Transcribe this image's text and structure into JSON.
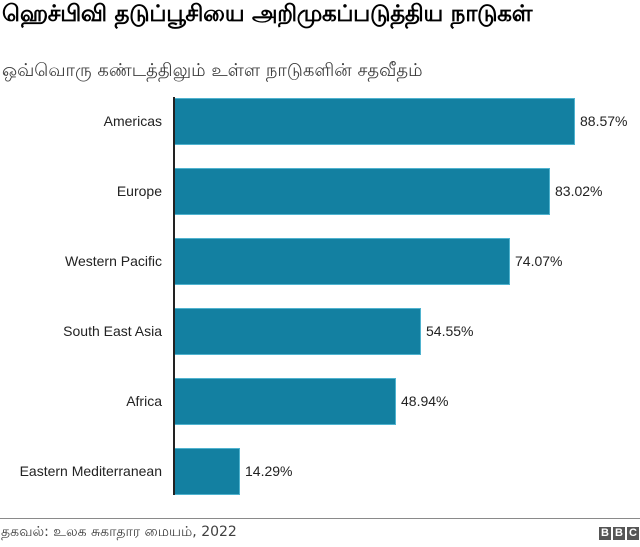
{
  "header": {
    "title": "ஹெச்பிவி தடுப்பூசியை அறிமுகப்படுத்திய நாடுகள்",
    "subtitle": "ஒவ்வொரு கண்டத்திலும் உள்ள நாடுகளின் சதவீதம்"
  },
  "footer": {
    "source": "தகவல்: உலக சுகாதார மையம், 2022",
    "logo_letters": [
      "B",
      "B",
      "C"
    ]
  },
  "colors": {
    "bar": "#1380A1",
    "bar_edge": "#4fb3cf",
    "axis": "#222222",
    "text": "#222222"
  },
  "rows": [
    {
      "label": "Americas",
      "value": 88.57,
      "value_label": "88.57%"
    },
    {
      "label": "Europe",
      "value": 83.02,
      "value_label": "83.02%"
    },
    {
      "label": "Western Pacific",
      "value": 74.07,
      "value_label": "74.07%"
    },
    {
      "label": "South East Asia",
      "value": 54.55,
      "value_label": "54.55%"
    },
    {
      "label": "Africa",
      "value": 48.94,
      "value_label": "48.94%"
    },
    {
      "label": "Eastern Mediterranean",
      "value": 14.29,
      "value_label": "14.29%"
    }
  ],
  "chart_data": {
    "type": "bar",
    "orientation": "horizontal",
    "title": "ஹெச்பிவி தடுப்பூசியை அறிமுகப்படுத்திய நாடுகள்",
    "subtitle": "ஒவ்வொரு கண்டத்திலும் உள்ள நாடுகளின் சதவீதம்",
    "categories": [
      "Americas",
      "Europe",
      "Western Pacific",
      "South East Asia",
      "Africa",
      "Eastern Mediterranean"
    ],
    "values": [
      88.57,
      83.02,
      74.07,
      54.55,
      48.94,
      14.29
    ],
    "data_labels": [
      "88.57%",
      "83.02%",
      "74.07%",
      "54.55%",
      "48.94%",
      "14.29%"
    ],
    "xlabel": "",
    "ylabel": "",
    "xlim": [
      0,
      100
    ],
    "grid": false,
    "legend": null,
    "source": "தகவல்: உலக சுகாதார மையம், 2022",
    "bar_color": "#1380A1"
  }
}
